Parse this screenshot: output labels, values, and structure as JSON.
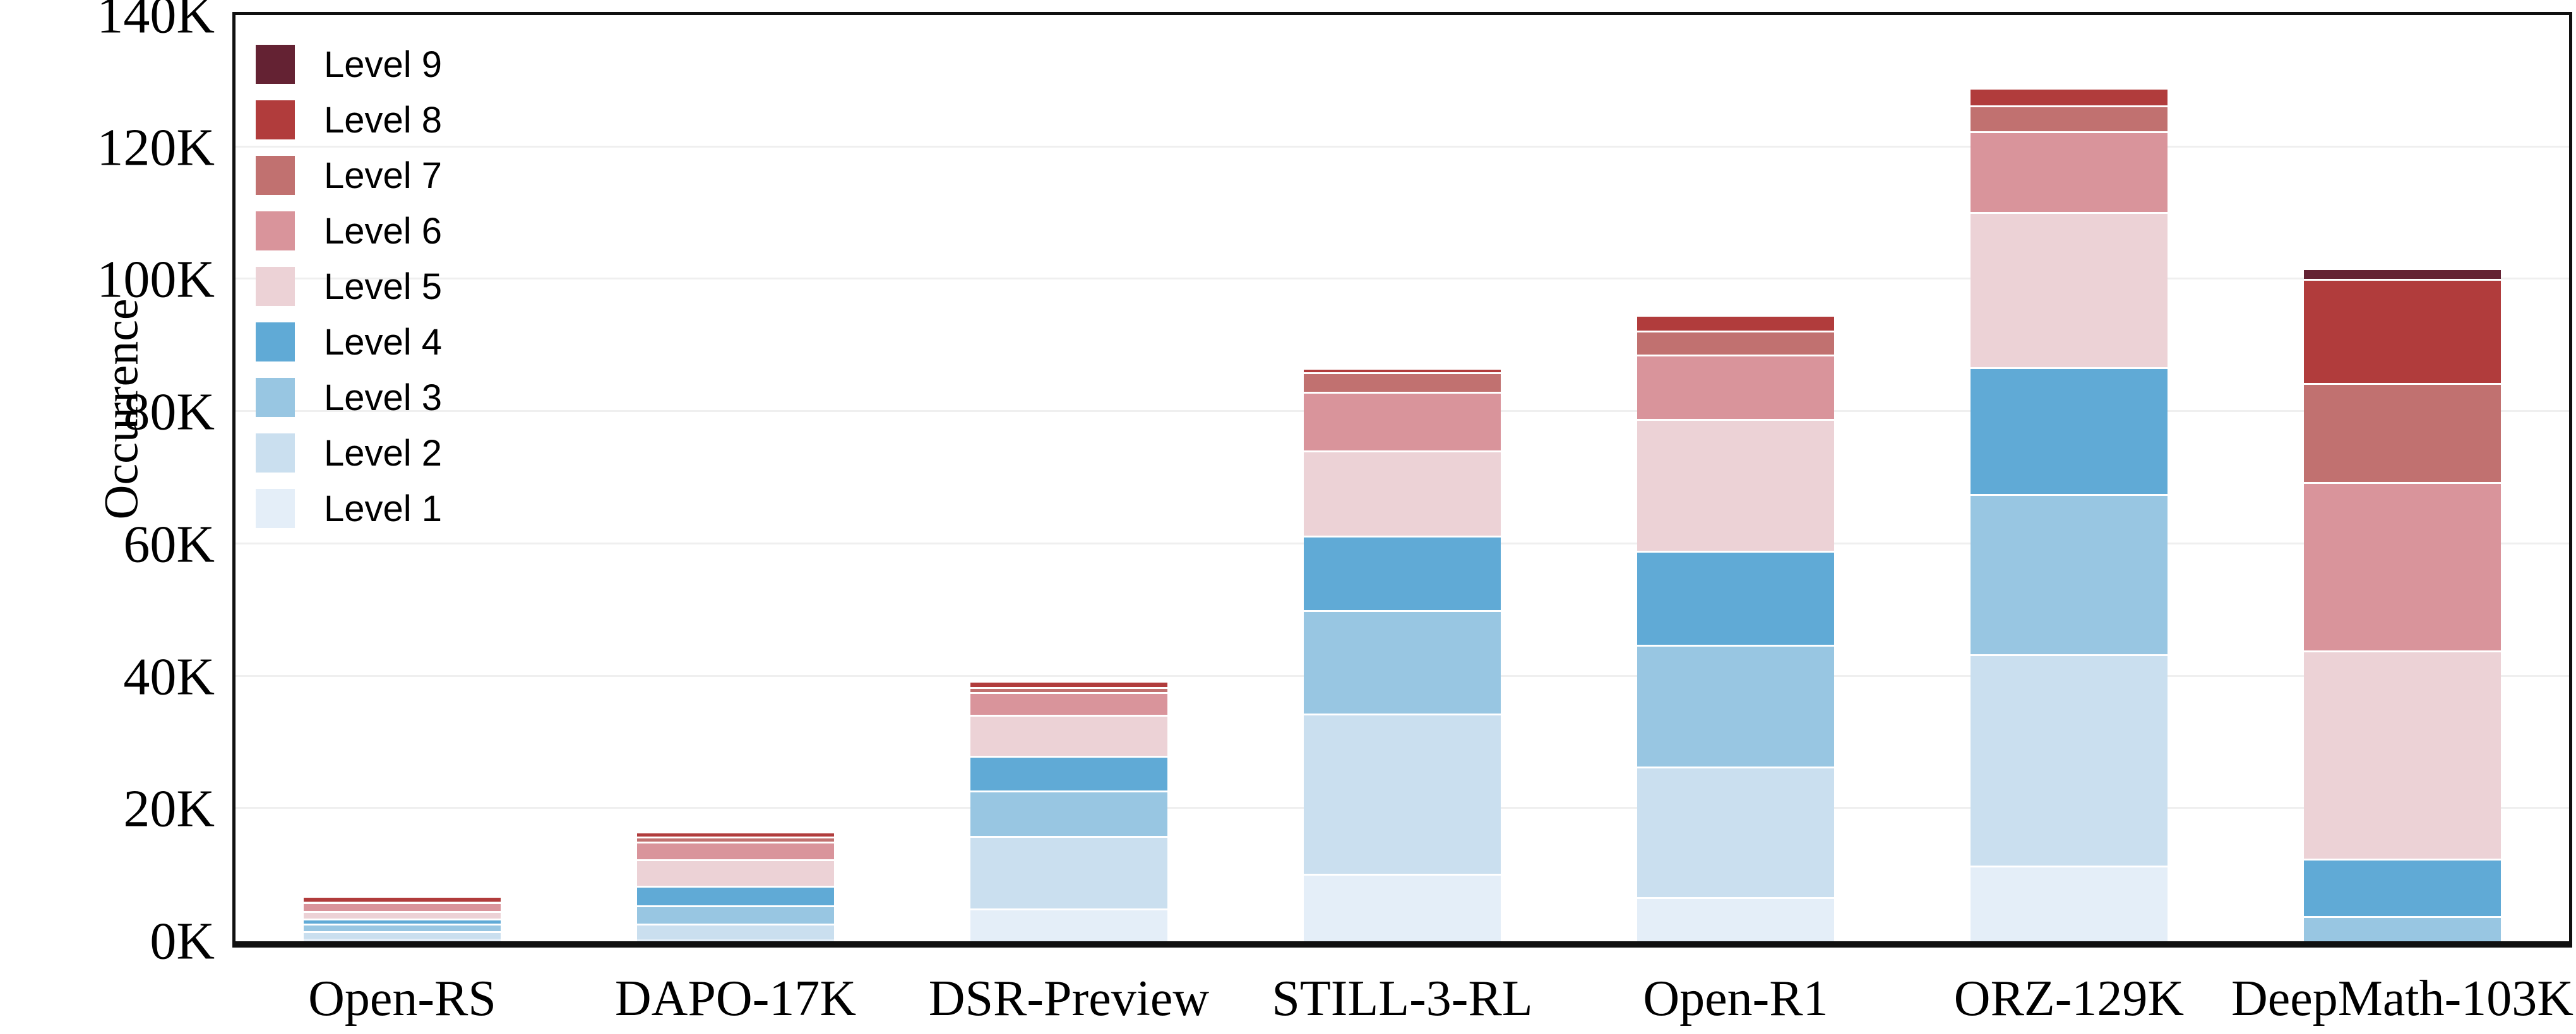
{
  "figure": {
    "ylabel": "Occurrence",
    "y_ticks": [
      "0K",
      "20K",
      "40K",
      "60K",
      "80K",
      "100K",
      "120K",
      "140K"
    ],
    "background_color": "#ffffff",
    "spine_color": "#101010",
    "gridline_color": "#efefef",
    "segment_separator_color": "#ffffff"
  },
  "chart_data": {
    "type": "bar",
    "stacked": true,
    "title": "",
    "xlabel": "",
    "ylabel": "Occurrence",
    "ylim": [
      0,
      140000
    ],
    "y_tick_interval": 20000,
    "grid": true,
    "legend_position": "upper-left",
    "legend_order": "Level 9 at top, Level 1 at bottom",
    "categories": [
      "Open-RS",
      "DAPO-17K",
      "DSR-Preview",
      "STILL-3-RL",
      "Open-R1",
      "ORZ-129K",
      "DeepMath-103K"
    ],
    "series": [
      {
        "name": "Level 1",
        "color": "#e4eef8",
        "values": [
          400,
          300,
          5000,
          10200,
          6700,
          11400,
          0
        ]
      },
      {
        "name": "Level 2",
        "color": "#cadfef",
        "values": [
          1100,
          2400,
          10900,
          24200,
          19700,
          32000,
          0
        ]
      },
      {
        "name": "Level 3",
        "color": "#98c6e2",
        "values": [
          1200,
          2700,
          6900,
          15700,
          18400,
          24200,
          3800
        ]
      },
      {
        "name": "Level 4",
        "color": "#60aad6",
        "values": [
          700,
          3000,
          5200,
          11200,
          14200,
          19200,
          8700
        ]
      },
      {
        "name": "Level 5",
        "color": "#ecd2d6",
        "values": [
          1200,
          4000,
          6200,
          12900,
          20000,
          23400,
          31500
        ]
      },
      {
        "name": "Level 6",
        "color": "#d9949b",
        "values": [
          1300,
          2700,
          3500,
          8900,
          9700,
          12300,
          25400
        ]
      },
      {
        "name": "Level 7",
        "color": "#c17170",
        "values": [
          250,
          700,
          750,
          2900,
          3600,
          3900,
          15000
        ]
      },
      {
        "name": "Level 8",
        "color": "#b13c3c",
        "values": [
          450,
          800,
          900,
          700,
          2400,
          2600,
          15700
        ]
      },
      {
        "name": "Level 9",
        "color": "#642233",
        "values": [
          0,
          0,
          0,
          0,
          0,
          0,
          1700
        ]
      }
    ],
    "approx_totals": [
      6600,
      16600,
      39350,
      86700,
      94700,
      129000,
      101800
    ]
  }
}
